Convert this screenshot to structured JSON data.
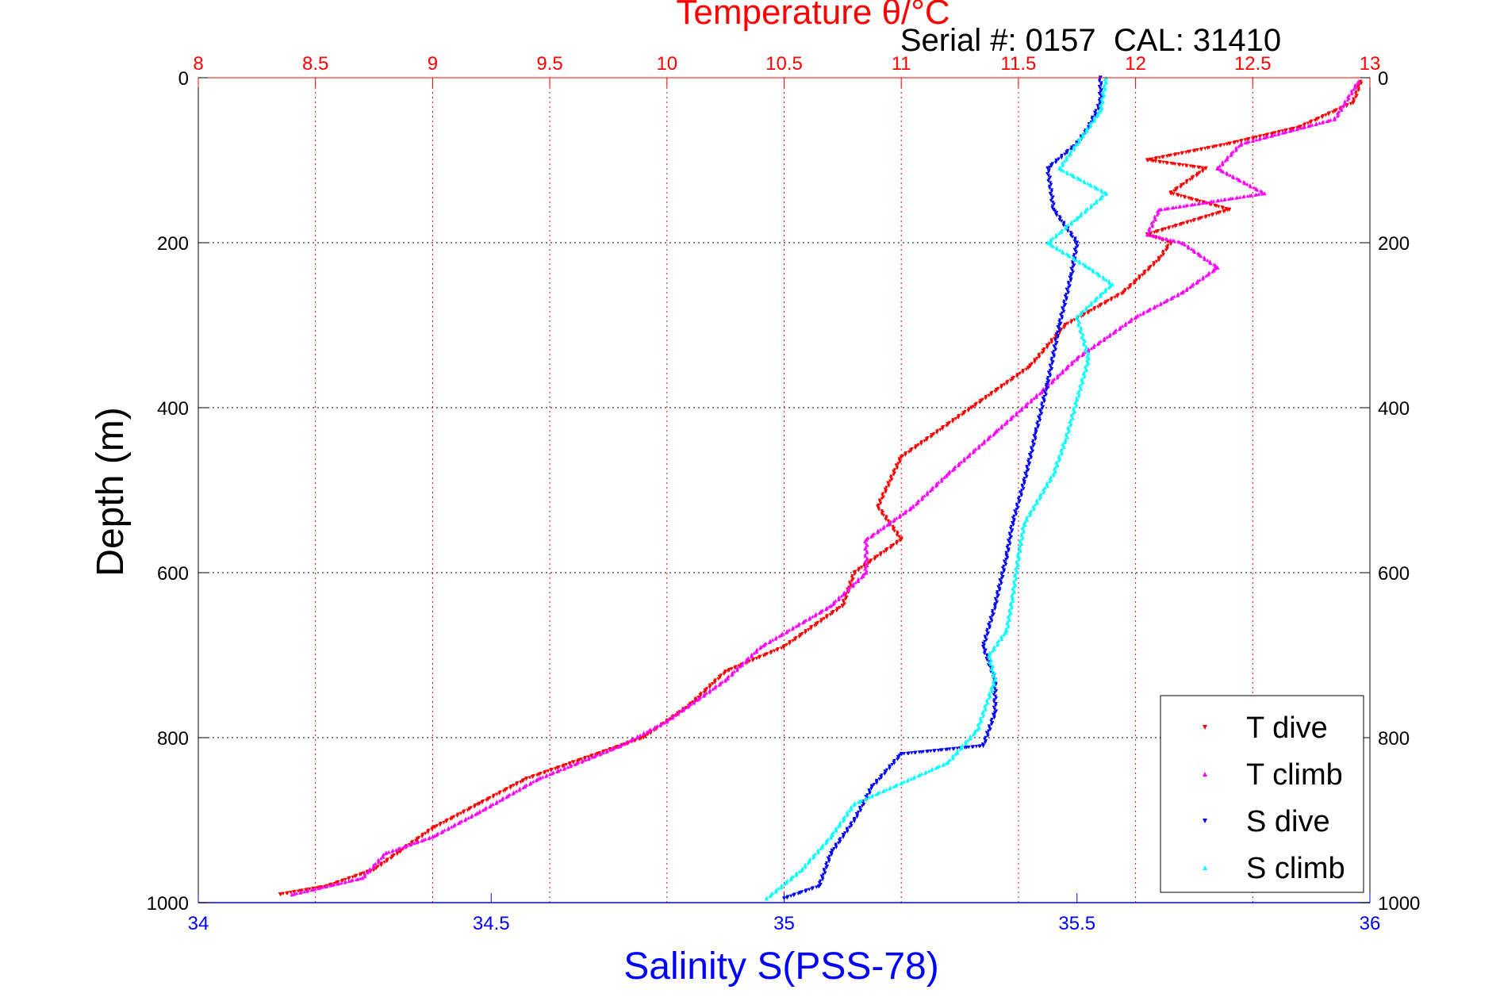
{
  "chart_data": {
    "type": "scatter",
    "title": "Temperature θ/°C",
    "subtitle": "Serial #: 0157  CAL: 31410",
    "xlabel": "Salinity S(PSS-78)",
    "ylabel": "Depth (m)",
    "top_axis": {
      "label": "Temperature θ/°C",
      "range": [
        8,
        13
      ],
      "ticks": [
        "8",
        "8.5",
        "9",
        "9.5",
        "10",
        "10.5",
        "11",
        "11.5",
        "12",
        "12.5",
        "13"
      ]
    },
    "bottom_axis": {
      "label": "Salinity S(PSS-78)",
      "range": [
        34,
        36
      ],
      "ticks": [
        "34",
        "34.5",
        "35",
        "35.5",
        "36"
      ]
    },
    "y_axis": {
      "range": [
        0,
        1000
      ],
      "inverted": true,
      "ticks": [
        "0",
        "200",
        "400",
        "600",
        "800",
        "1000"
      ]
    },
    "grid": true,
    "legend_position": "bottom-right",
    "colors": {
      "t_dive": "#ff0000",
      "t_climb": "#ff00ff",
      "s_dive": "#0000ff",
      "s_climb": "#00ffff"
    },
    "series": [
      {
        "name": "T dive",
        "axis": "top",
        "color": "#ff0000",
        "marker": "triangle-down",
        "points": [
          [
            12.96,
            5
          ],
          [
            12.93,
            30
          ],
          [
            12.7,
            60
          ],
          [
            12.4,
            80
          ],
          [
            12.05,
            100
          ],
          [
            12.3,
            110
          ],
          [
            12.15,
            140
          ],
          [
            12.4,
            160
          ],
          [
            12.05,
            190
          ],
          [
            12.15,
            200
          ],
          [
            12.1,
            220
          ],
          [
            11.95,
            260
          ],
          [
            11.7,
            300
          ],
          [
            11.55,
            350
          ],
          [
            11.3,
            400
          ],
          [
            11.0,
            460
          ],
          [
            10.9,
            520
          ],
          [
            11.0,
            560
          ],
          [
            10.8,
            600
          ],
          [
            10.75,
            640
          ],
          [
            10.5,
            690
          ],
          [
            10.25,
            720
          ],
          [
            10.1,
            760
          ],
          [
            9.9,
            800
          ],
          [
            9.6,
            830
          ],
          [
            9.4,
            850
          ],
          [
            9.2,
            880
          ],
          [
            9.0,
            910
          ],
          [
            8.85,
            940
          ],
          [
            8.75,
            960
          ],
          [
            8.55,
            980
          ],
          [
            8.35,
            990
          ]
        ]
      },
      {
        "name": "T climb",
        "axis": "top",
        "color": "#ff00ff",
        "marker": "triangle-up",
        "points": [
          [
            12.95,
            5
          ],
          [
            12.85,
            50
          ],
          [
            12.45,
            80
          ],
          [
            12.35,
            110
          ],
          [
            12.55,
            140
          ],
          [
            12.1,
            160
          ],
          [
            12.05,
            190
          ],
          [
            12.2,
            200
          ],
          [
            12.35,
            230
          ],
          [
            12.2,
            260
          ],
          [
            12.0,
            290
          ],
          [
            11.75,
            340
          ],
          [
            11.6,
            380
          ],
          [
            11.4,
            430
          ],
          [
            11.2,
            480
          ],
          [
            11.05,
            520
          ],
          [
            10.85,
            560
          ],
          [
            10.85,
            600
          ],
          [
            10.7,
            640
          ],
          [
            10.4,
            690
          ],
          [
            10.25,
            730
          ],
          [
            10.0,
            780
          ],
          [
            9.8,
            810
          ],
          [
            9.45,
            850
          ],
          [
            9.2,
            890
          ],
          [
            9.0,
            920
          ],
          [
            8.8,
            940
          ],
          [
            8.7,
            970
          ],
          [
            8.4,
            990
          ]
        ]
      },
      {
        "name": "S dive",
        "axis": "bottom",
        "color": "#0000ff",
        "marker": "triangle-down",
        "points": [
          [
            35.54,
            0
          ],
          [
            35.54,
            30
          ],
          [
            35.52,
            60
          ],
          [
            35.5,
            80
          ],
          [
            35.45,
            110
          ],
          [
            35.46,
            160
          ],
          [
            35.5,
            200
          ],
          [
            35.49,
            240
          ],
          [
            35.47,
            300
          ],
          [
            35.45,
            370
          ],
          [
            35.43,
            430
          ],
          [
            35.41,
            490
          ],
          [
            35.39,
            540
          ],
          [
            35.38,
            580
          ],
          [
            35.36,
            640
          ],
          [
            35.34,
            690
          ],
          [
            35.36,
            730
          ],
          [
            35.36,
            770
          ],
          [
            35.34,
            810
          ],
          [
            35.2,
            820
          ],
          [
            35.15,
            860
          ],
          [
            35.12,
            900
          ],
          [
            35.08,
            940
          ],
          [
            35.06,
            980
          ],
          [
            35.0,
            995
          ]
        ]
      },
      {
        "name": "S climb",
        "axis": "bottom",
        "color": "#00ffff",
        "marker": "triangle-up",
        "points": [
          [
            35.55,
            0
          ],
          [
            35.54,
            40
          ],
          [
            35.5,
            80
          ],
          [
            35.47,
            110
          ],
          [
            35.55,
            140
          ],
          [
            35.5,
            170
          ],
          [
            35.45,
            200
          ],
          [
            35.52,
            230
          ],
          [
            35.56,
            250
          ],
          [
            35.5,
            290
          ],
          [
            35.52,
            340
          ],
          [
            35.5,
            390
          ],
          [
            35.48,
            440
          ],
          [
            35.46,
            480
          ],
          [
            35.41,
            540
          ],
          [
            35.4,
            580
          ],
          [
            35.39,
            630
          ],
          [
            35.38,
            670
          ],
          [
            35.35,
            700
          ],
          [
            35.36,
            730
          ],
          [
            35.33,
            790
          ],
          [
            35.28,
            830
          ],
          [
            35.12,
            880
          ],
          [
            35.08,
            920
          ],
          [
            35.03,
            960
          ],
          [
            34.97,
            995
          ]
        ]
      }
    ]
  }
}
